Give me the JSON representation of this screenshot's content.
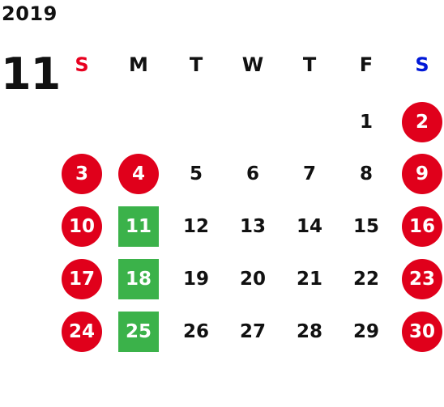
{
  "calendar": {
    "year": "2019",
    "month": "11",
    "weekdays": [
      "S",
      "M",
      "T",
      "W",
      "T",
      "F",
      "S"
    ],
    "weekday_colors": [
      "#e8001f",
      "#111111",
      "#111111",
      "#111111",
      "#111111",
      "#111111",
      "#0018d8"
    ],
    "first_weekday_index": 5,
    "days_in_month": 30,
    "holiday_color": "#e0001b",
    "special_color": "#3bb24a",
    "holidays": [
      2,
      3,
      4,
      9,
      10,
      16,
      17,
      23,
      24,
      30
    ],
    "special_days": [
      11,
      18,
      25
    ]
  }
}
